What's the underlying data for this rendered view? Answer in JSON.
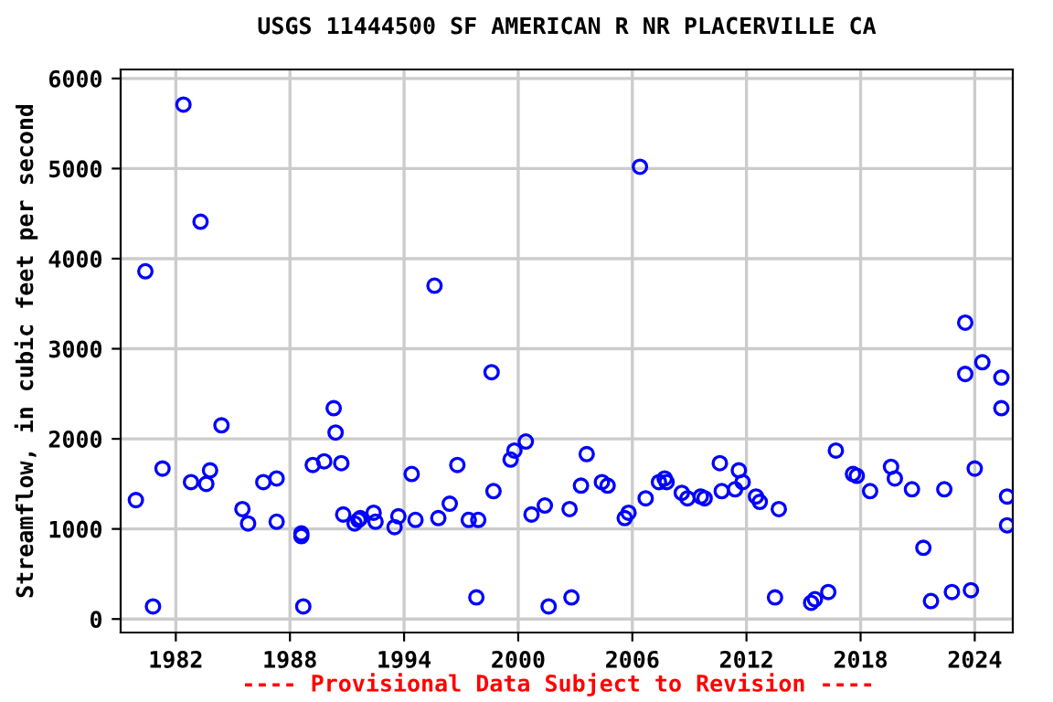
{
  "chart_data": {
    "type": "scatter",
    "title": "USGS 11444500 SF AMERICAN R NR PLACERVILLE CA",
    "ylabel": "Streamflow, in cubic feet per second",
    "annotations": [
      "---- Provisional Data Subject to Revision ----"
    ],
    "x": [
      1979.9,
      1980.4,
      1980.8,
      1981.3,
      1982.4,
      1982.8,
      1983.3,
      1983.6,
      1983.8,
      1984.4,
      1985.5,
      1985.8,
      1986.6,
      1987.3,
      1987.3,
      1988.6,
      1988.6,
      1988.7,
      1989.2,
      1989.8,
      1990.3,
      1990.4,
      1990.7,
      1990.8,
      1991.4,
      1991.6,
      1991.7,
      1992.4,
      1992.5,
      1993.5,
      1993.7,
      1994.4,
      1994.6,
      1995.6,
      1995.8,
      1996.4,
      1996.8,
      1997.4,
      1997.8,
      1997.9,
      1998.6,
      1998.7,
      1999.6,
      1999.8,
      2000.4,
      2000.7,
      2001.4,
      2001.6,
      2002.7,
      2002.8,
      2003.3,
      2003.6,
      2004.4,
      2004.7,
      2005.6,
      2005.8,
      2006.4,
      2006.7,
      2007.4,
      2007.7,
      2007.8,
      2008.6,
      2008.9,
      2009.6,
      2009.8,
      2010.6,
      2010.7,
      2011.4,
      2011.6,
      2011.8,
      2012.5,
      2012.7,
      2013.5,
      2013.7,
      2015.4,
      2015.6,
      2016.3,
      2016.7,
      2017.6,
      2017.8,
      2018.5,
      2019.6,
      2019.8,
      2020.7,
      2021.3,
      2021.7,
      2022.4,
      2022.8,
      2023.5,
      2023.5,
      2023.8,
      2024.0,
      2024.4,
      2025.4,
      2025.4,
      2025.7,
      2025.7
    ],
    "values": [
      1320,
      3860,
      140,
      1670,
      5710,
      1520,
      4410,
      1500,
      1650,
      2150,
      1220,
      1060,
      1520,
      1560,
      1080,
      950,
      920,
      140,
      1710,
      1750,
      2340,
      2070,
      1730,
      1160,
      1060,
      1100,
      1120,
      1180,
      1080,
      1020,
      1140,
      1610,
      1100,
      3700,
      1120,
      1280,
      1710,
      1100,
      240,
      1100,
      2740,
      1420,
      1770,
      1870,
      1970,
      1160,
      1260,
      140,
      1220,
      240,
      1480,
      1830,
      1520,
      1480,
      1120,
      1180,
      5020,
      1340,
      1520,
      1560,
      1520,
      1400,
      1340,
      1360,
      1340,
      1730,
      1420,
      1440,
      1650,
      1520,
      1360,
      1300,
      240,
      1220,
      180,
      220,
      300,
      1870,
      1610,
      1590,
      1420,
      1690,
      1560,
      1440,
      790,
      200,
      1440,
      300,
      2720,
      3290,
      320,
      1670,
      2850,
      2680,
      2340,
      1360,
      1040
    ],
    "color": "#0000ff",
    "marker": "circle",
    "grid": true,
    "xlim": [
      1979.1,
      2026.0
    ],
    "xticks": [
      1982,
      1988,
      1994,
      2000,
      2006,
      2012,
      2018,
      2024
    ],
    "ylim": [
      -150,
      6100
    ],
    "yticks": [
      0,
      1000,
      2000,
      3000,
      4000,
      5000,
      6000
    ]
  }
}
